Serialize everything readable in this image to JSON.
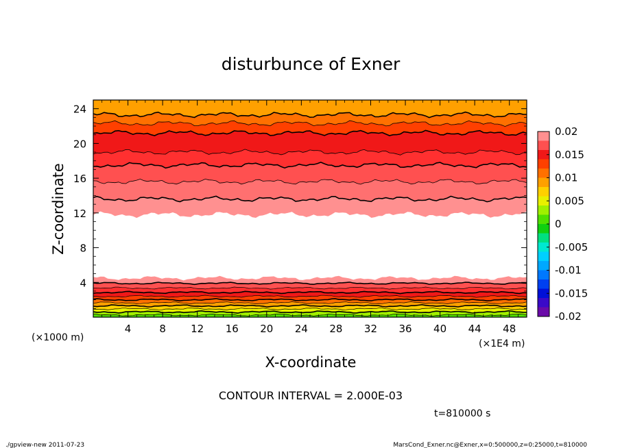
{
  "chart_data": {
    "type": "heatmap",
    "title": "disturbunce of Exner",
    "xlabel": "X-coordinate",
    "ylabel": "Z-coordinate",
    "x_scale_note": "(×1E4 m)",
    "y_scale_note": "(×1000 m)",
    "xlim": [
      0,
      50
    ],
    "ylim": [
      0,
      25
    ],
    "x_ticks": [
      4,
      8,
      12,
      16,
      20,
      24,
      28,
      32,
      36,
      40,
      44,
      48
    ],
    "y_ticks": [
      4,
      8,
      12,
      16,
      20,
      24
    ],
    "contour_interval_text": "CONTOUR INTERVAL = 2.000E-03",
    "time_text": "t=810000 s",
    "colorbar": {
      "ticks": [
        "0.02",
        "0.015",
        "0.01",
        "0.005",
        "0",
        "-0.005",
        "-0.01",
        "-0.015",
        "-0.02"
      ],
      "levels": [
        -0.02,
        -0.018,
        -0.016,
        -0.014,
        -0.012,
        -0.01,
        -0.008,
        -0.006,
        -0.004,
        -0.002,
        0,
        0.002,
        0.004,
        0.006,
        0.008,
        0.01,
        0.012,
        0.014,
        0.016,
        0.018,
        0.02
      ],
      "colors": [
        "#6a0aa8",
        "#3a0ac8",
        "#0010d8",
        "#0040f0",
        "#0078ff",
        "#00a8ff",
        "#00d0ff",
        "#00e8d0",
        "#00e080",
        "#10d010",
        "#50e000",
        "#a0f000",
        "#e8f000",
        "#ffd000",
        "#ffa000",
        "#ff7000",
        "#ff4000",
        "#f01818",
        "#ff5050",
        "#ff9090"
      ]
    },
    "bands_lower": [
      {
        "z": 0.0,
        "color": "#50e000"
      },
      {
        "z": 0.25,
        "color": "#a0f000"
      },
      {
        "z": 0.6,
        "color": "#e8f000"
      },
      {
        "z": 0.95,
        "color": "#ffd000"
      },
      {
        "z": 1.3,
        "color": "#ffa000"
      },
      {
        "z": 1.65,
        "color": "#ff7000"
      },
      {
        "z": 2.0,
        "color": "#ff4000"
      },
      {
        "z": 2.4,
        "color": "#f01818"
      },
      {
        "z": 2.85,
        "color": "#ff3030"
      },
      {
        "z": 3.35,
        "color": "#ff5050"
      },
      {
        "z": 3.9,
        "color": "#ff9090"
      }
    ],
    "white_region": {
      "z_bottom": 4.5,
      "z_top": 11.8
    },
    "bands_upper": [
      {
        "z": 11.8,
        "color": "#ff9090"
      },
      {
        "z": 13.6,
        "color": "#ff7070"
      },
      {
        "z": 15.6,
        "color": "#ff5050"
      },
      {
        "z": 17.5,
        "color": "#ff3030"
      },
      {
        "z": 19.0,
        "color": "#f01818"
      },
      {
        "z": 21.2,
        "color": "#ff4000"
      },
      {
        "z": 22.3,
        "color": "#ff7000"
      },
      {
        "z": 23.3,
        "color": "#ffa000"
      },
      {
        "z": 25.0,
        "color": null
      }
    ]
  },
  "footer": {
    "left": "./gpview-new  2011-07-23",
    "right": "MarsCond_Exner.nc@Exner,x=0:500000,z=0:25000,t=810000"
  }
}
